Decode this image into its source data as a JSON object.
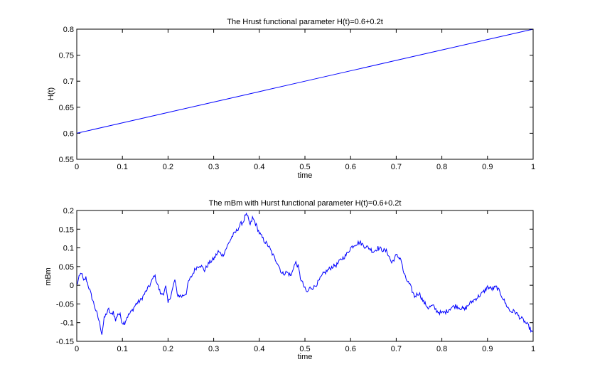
{
  "figure": {
    "background": "#ffffff",
    "line_color": "#0000ff"
  },
  "chart_data": [
    {
      "type": "line",
      "title": "The Hrust functional parameter H(t)=0.6+0.2t",
      "xlabel": "time",
      "ylabel": "H(t)",
      "xlim": [
        0,
        1
      ],
      "ylim": [
        0.55,
        0.8
      ],
      "xticks": [
        "0",
        "0.1",
        "0.2",
        "0.3",
        "0.4",
        "0.5",
        "0.6",
        "0.7",
        "0.8",
        "0.9",
        "1"
      ],
      "yticks": [
        "0.55",
        "0.6",
        "0.65",
        "0.7",
        "0.75",
        "0.8"
      ],
      "grid": false,
      "series": [
        {
          "x": [
            0,
            0.1,
            0.2,
            0.3,
            0.4,
            0.5,
            0.6,
            0.7,
            0.8,
            0.9,
            1
          ],
          "y": [
            0.6,
            0.62,
            0.64,
            0.66,
            0.68,
            0.7,
            0.72,
            0.74,
            0.76,
            0.78,
            0.8
          ]
        }
      ]
    },
    {
      "type": "line",
      "title": "The mBm with Hurst functional parameter H(t)=0.6+0.2t",
      "xlabel": "time",
      "ylabel": "mBm",
      "xlim": [
        0,
        1
      ],
      "ylim": [
        -0.15,
        0.2
      ],
      "xticks": [
        "0",
        "0.1",
        "0.2",
        "0.3",
        "0.4",
        "0.5",
        "0.6",
        "0.7",
        "0.8",
        "0.9",
        "1"
      ],
      "yticks": [
        "-0.15",
        "-0.1",
        "-0.05",
        "0",
        "0.05",
        "0.1",
        "0.15",
        "0.2"
      ],
      "grid": false,
      "series": [
        {
          "x": [
            0,
            0.005,
            0.01,
            0.015,
            0.02,
            0.025,
            0.03,
            0.035,
            0.04,
            0.045,
            0.05,
            0.055,
            0.06,
            0.065,
            0.07,
            0.075,
            0.08,
            0.085,
            0.09,
            0.095,
            0.1,
            0.105,
            0.11,
            0.12,
            0.13,
            0.14,
            0.15,
            0.16,
            0.165,
            0.17,
            0.175,
            0.18,
            0.185,
            0.19,
            0.195,
            0.2,
            0.205,
            0.21,
            0.215,
            0.22,
            0.23,
            0.24,
            0.245,
            0.25,
            0.26,
            0.27,
            0.28,
            0.29,
            0.3,
            0.31,
            0.32,
            0.33,
            0.34,
            0.35,
            0.36,
            0.365,
            0.37,
            0.375,
            0.38,
            0.385,
            0.39,
            0.4,
            0.41,
            0.42,
            0.43,
            0.44,
            0.45,
            0.46,
            0.47,
            0.475,
            0.48,
            0.485,
            0.49,
            0.5,
            0.505,
            0.51,
            0.52,
            0.53,
            0.54,
            0.55,
            0.56,
            0.57,
            0.58,
            0.59,
            0.6,
            0.61,
            0.62,
            0.63,
            0.64,
            0.65,
            0.66,
            0.67,
            0.68,
            0.69,
            0.7,
            0.705,
            0.71,
            0.715,
            0.72,
            0.73,
            0.74,
            0.75,
            0.76,
            0.77,
            0.78,
            0.79,
            0.8,
            0.81,
            0.82,
            0.83,
            0.84,
            0.85,
            0.86,
            0.87,
            0.88,
            0.89,
            0.9,
            0.91,
            0.92,
            0.93,
            0.94,
            0.95,
            0.96,
            0.97,
            0.98,
            0.99,
            1
          ],
          "y": [
            0.0,
            0.02,
            0.035,
            0.01,
            0.02,
            0.0,
            -0.02,
            -0.04,
            -0.06,
            -0.08,
            -0.1,
            -0.13,
            -0.09,
            -0.075,
            -0.065,
            -0.08,
            -0.07,
            -0.095,
            -0.075,
            -0.08,
            -0.1,
            -0.1,
            -0.085,
            -0.07,
            -0.05,
            -0.04,
            -0.02,
            0.0,
            0.012,
            0.028,
            0.01,
            -0.01,
            -0.025,
            -0.02,
            -0.005,
            -0.048,
            -0.03,
            -0.01,
            0.015,
            -0.025,
            -0.03,
            -0.02,
            0.01,
            0.02,
            0.045,
            0.055,
            0.04,
            0.06,
            0.07,
            0.09,
            0.08,
            0.105,
            0.13,
            0.145,
            0.165,
            0.17,
            0.19,
            0.18,
            0.16,
            0.18,
            0.17,
            0.14,
            0.12,
            0.105,
            0.08,
            0.06,
            0.03,
            0.035,
            0.025,
            0.05,
            0.06,
            0.05,
            0.02,
            -0.01,
            -0.02,
            -0.008,
            -0.005,
            0.01,
            0.03,
            0.04,
            0.05,
            0.055,
            0.07,
            0.08,
            0.1,
            0.11,
            0.115,
            0.105,
            0.1,
            0.09,
            0.1,
            0.095,
            0.09,
            0.06,
            0.08,
            0.075,
            0.072,
            0.04,
            0.02,
            0.0,
            -0.03,
            -0.02,
            -0.045,
            -0.06,
            -0.055,
            -0.07,
            -0.075,
            -0.07,
            -0.06,
            -0.055,
            -0.06,
            -0.065,
            -0.05,
            -0.04,
            -0.03,
            -0.02,
            -0.005,
            -0.01,
            -0.005,
            -0.025,
            -0.05,
            -0.07,
            -0.07,
            -0.085,
            -0.095,
            -0.11,
            -0.13
          ]
        }
      ]
    }
  ]
}
